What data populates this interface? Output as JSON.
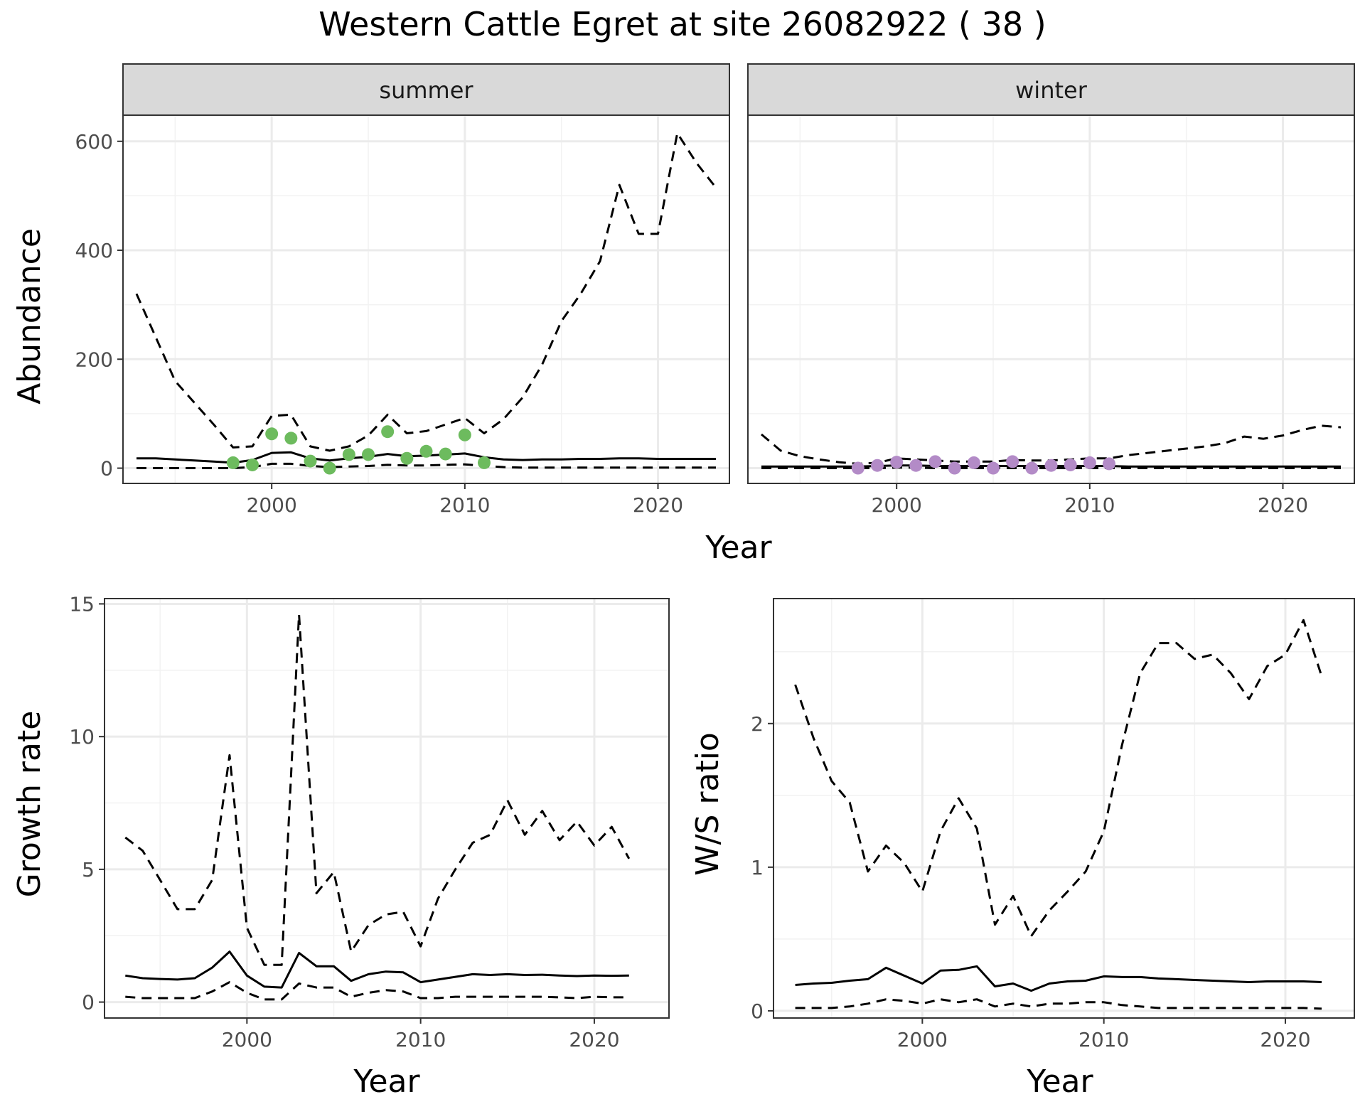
{
  "title": "Western Cattle Egret at site 26082922 ( 38 )",
  "chart_data": [
    {
      "id": "abundance-summer",
      "type": "line",
      "facet": "summer",
      "ylabel": "Abundance",
      "xlim": [
        1992.3,
        2023.7
      ],
      "ylim": [
        -28,
        648
      ],
      "xticks": [
        2000,
        2010,
        2020
      ],
      "yticks": [
        0,
        200,
        400,
        600
      ],
      "point_color": "#6dbb5e",
      "series": [
        {
          "style": "solid",
          "x": [
            1993,
            1994,
            1995,
            1996,
            1997,
            1998,
            1999,
            2000,
            2001,
            2002,
            2003,
            2004,
            2005,
            2006,
            2007,
            2008,
            2009,
            2010,
            2011,
            2012,
            2013,
            2014,
            2015,
            2016,
            2017,
            2018,
            2019,
            2020,
            2021,
            2022,
            2023
          ],
          "y": [
            18,
            18,
            16,
            14,
            12,
            10,
            15,
            28,
            29,
            18,
            14,
            18,
            21,
            26,
            22,
            23,
            25,
            27,
            20,
            16,
            15,
            16,
            16,
            17,
            17,
            18,
            18,
            17,
            17,
            17,
            17
          ]
        },
        {
          "style": "dashed",
          "x": [
            1993,
            1994,
            1995,
            1996,
            1997,
            1998,
            1999,
            2000,
            2001,
            2002,
            2003,
            2004,
            2005,
            2006,
            2007,
            2008,
            2009,
            2010,
            2011,
            2012,
            2013,
            2014,
            2015,
            2016,
            2017,
            2018,
            2019,
            2020,
            2021,
            2022,
            2023
          ],
          "y": [
            320,
            240,
            160,
            120,
            80,
            38,
            40,
            96,
            98,
            40,
            32,
            40,
            60,
            98,
            64,
            68,
            80,
            92,
            64,
            90,
            130,
            190,
            270,
            320,
            380,
            520,
            430,
            430,
            615,
            560,
            515
          ]
        },
        {
          "style": "dashed",
          "x": [
            1993,
            1994,
            1995,
            1996,
            1997,
            1998,
            1999,
            2000,
            2001,
            2002,
            2003,
            2004,
            2005,
            2006,
            2007,
            2008,
            2009,
            2010,
            2011,
            2012,
            2013,
            2014,
            2015,
            2016,
            2017,
            2018,
            2019,
            2020,
            2021,
            2022,
            2023
          ],
          "y": [
            0,
            0,
            0,
            0,
            0,
            0,
            2,
            8,
            8,
            4,
            2,
            3,
            4,
            6,
            5,
            5,
            6,
            7,
            4,
            2,
            1,
            1,
            1,
            1,
            1,
            1,
            1,
            1,
            1,
            1,
            1
          ]
        }
      ],
      "points": {
        "x": [
          1998,
          1999,
          2000,
          2001,
          2002,
          2003,
          2004,
          2005,
          2006,
          2007,
          2008,
          2009,
          2010,
          2011
        ],
        "y": [
          10,
          6,
          63,
          55,
          13,
          0,
          25,
          25,
          67,
          18,
          31,
          26,
          61,
          10
        ]
      }
    },
    {
      "id": "abundance-winter",
      "type": "line",
      "facet": "winter",
      "xlim": [
        1992.3,
        2023.7
      ],
      "ylim": [
        -28,
        648
      ],
      "xticks": [
        2000,
        2010,
        2020
      ],
      "yticks": [],
      "point_color": "#b38bc7",
      "series": [
        {
          "style": "solid",
          "x": [
            1993,
            1994,
            1995,
            1996,
            1997,
            1998,
            1999,
            2000,
            2001,
            2002,
            2003,
            2004,
            2005,
            2006,
            2007,
            2008,
            2009,
            2010,
            2011,
            2012,
            2013,
            2014,
            2015,
            2016,
            2017,
            2018,
            2019,
            2020,
            2021,
            2022,
            2023
          ],
          "y": [
            3,
            3,
            3,
            3,
            3,
            3,
            4,
            5,
            5,
            4,
            4,
            4,
            4,
            4,
            4,
            4,
            4,
            4,
            4,
            3,
            3,
            3,
            3,
            3,
            3,
            3,
            3,
            3,
            3,
            3,
            3
          ]
        },
        {
          "style": "dashed",
          "x": [
            1993,
            1994,
            1995,
            1996,
            1997,
            1998,
            1999,
            2000,
            2001,
            2002,
            2003,
            2004,
            2005,
            2006,
            2007,
            2008,
            2009,
            2010,
            2011,
            2012,
            2013,
            2014,
            2015,
            2016,
            2017,
            2018,
            2019,
            2020,
            2021,
            2022,
            2023
          ],
          "y": [
            62,
            32,
            22,
            16,
            11,
            8,
            10,
            18,
            16,
            14,
            12,
            12,
            12,
            15,
            14,
            14,
            16,
            18,
            18,
            24,
            28,
            32,
            36,
            40,
            46,
            58,
            54,
            60,
            70,
            78,
            75
          ]
        },
        {
          "style": "dashed",
          "x": [
            1993,
            1994,
            1995,
            1996,
            1997,
            1998,
            1999,
            2000,
            2001,
            2002,
            2003,
            2004,
            2005,
            2006,
            2007,
            2008,
            2009,
            2010,
            2011,
            2012,
            2013,
            2014,
            2015,
            2016,
            2017,
            2018,
            2019,
            2020,
            2021,
            2022,
            2023
          ],
          "y": [
            0,
            0,
            0,
            0,
            0,
            0,
            0,
            1,
            1,
            0,
            0,
            0,
            0,
            0,
            0,
            0,
            0,
            0,
            0,
            0,
            0,
            0,
            0,
            0,
            0,
            0,
            0,
            0,
            0,
            0,
            0
          ]
        }
      ],
      "points": {
        "x": [
          1998,
          1999,
          2000,
          2001,
          2002,
          2003,
          2004,
          2005,
          2006,
          2007,
          2008,
          2009,
          2010,
          2011
        ],
        "y": [
          0,
          5,
          11,
          5,
          12,
          0,
          10,
          0,
          12,
          0,
          5,
          6,
          10,
          8
        ]
      }
    },
    {
      "id": "growth-rate",
      "type": "line",
      "xlabel": "Year",
      "ylabel": "Growth rate",
      "xlim": [
        1991.8,
        2024.3
      ],
      "ylim": [
        -0.6,
        15.2
      ],
      "xticks": [
        2000,
        2010,
        2020
      ],
      "yticks": [
        0,
        5,
        10,
        15
      ],
      "series": [
        {
          "style": "solid",
          "x": [
            1993,
            1994,
            1995,
            1996,
            1997,
            1998,
            1999,
            2000,
            2001,
            2002,
            2003,
            2004,
            2005,
            2006,
            2007,
            2008,
            2009,
            2010,
            2011,
            2012,
            2013,
            2014,
            2015,
            2016,
            2017,
            2018,
            2019,
            2020,
            2021,
            2022
          ],
          "y": [
            1.0,
            0.9,
            0.87,
            0.85,
            0.9,
            1.3,
            1.9,
            1.0,
            0.58,
            0.55,
            1.85,
            1.35,
            1.35,
            0.8,
            1.05,
            1.15,
            1.12,
            0.75,
            0.85,
            0.95,
            1.05,
            1.02,
            1.05,
            1.02,
            1.03,
            1.0,
            0.98,
            1.0,
            0.99,
            1.0
          ]
        },
        {
          "style": "dashed",
          "x": [
            1993,
            1994,
            1995,
            1996,
            1997,
            1998,
            1999,
            2000,
            2001,
            2002,
            2003,
            2004,
            2005,
            2006,
            2007,
            2008,
            2009,
            2010,
            2011,
            2012,
            2013,
            2014,
            2015,
            2016,
            2017,
            2018,
            2019,
            2020,
            2021,
            2022
          ],
          "y": [
            6.2,
            5.7,
            4.6,
            3.5,
            3.5,
            4.6,
            9.3,
            2.8,
            1.4,
            1.4,
            14.6,
            4.1,
            4.9,
            1.9,
            2.9,
            3.3,
            3.4,
            2.1,
            3.9,
            5.0,
            6.0,
            6.3,
            7.6,
            6.3,
            7.2,
            6.1,
            6.8,
            5.9,
            6.6,
            5.4
          ]
        },
        {
          "style": "dashed",
          "x": [
            1993,
            1994,
            1995,
            1996,
            1997,
            1998,
            1999,
            2000,
            2001,
            2002,
            2003,
            2004,
            2005,
            2006,
            2007,
            2008,
            2009,
            2010,
            2011,
            2012,
            2013,
            2014,
            2015,
            2016,
            2017,
            2018,
            2019,
            2020,
            2021,
            2022
          ],
          "y": [
            0.2,
            0.15,
            0.15,
            0.15,
            0.15,
            0.4,
            0.75,
            0.35,
            0.1,
            0.1,
            0.7,
            0.55,
            0.55,
            0.2,
            0.35,
            0.45,
            0.4,
            0.15,
            0.15,
            0.2,
            0.2,
            0.2,
            0.2,
            0.2,
            0.2,
            0.18,
            0.15,
            0.2,
            0.18,
            0.18
          ]
        }
      ]
    },
    {
      "id": "ws-ratio",
      "type": "line",
      "xlabel": "Year",
      "ylabel": "W/S ratio",
      "xlim": [
        1991.8,
        2023.8
      ],
      "ylim": [
        -0.05,
        2.87
      ],
      "xticks": [
        2000,
        2010,
        2020
      ],
      "yticks": [
        0,
        1,
        2
      ],
      "series": [
        {
          "style": "solid",
          "x": [
            1993,
            1994,
            1995,
            1996,
            1997,
            1998,
            1999,
            2000,
            2001,
            2002,
            2003,
            2004,
            2005,
            2006,
            2007,
            2008,
            2009,
            2010,
            2011,
            2012,
            2013,
            2014,
            2015,
            2016,
            2017,
            2018,
            2019,
            2020,
            2021,
            2022
          ],
          "y": [
            0.18,
            0.19,
            0.195,
            0.21,
            0.22,
            0.3,
            0.245,
            0.19,
            0.28,
            0.285,
            0.31,
            0.17,
            0.19,
            0.14,
            0.19,
            0.205,
            0.21,
            0.24,
            0.235,
            0.235,
            0.225,
            0.22,
            0.215,
            0.21,
            0.205,
            0.2,
            0.205,
            0.205,
            0.205,
            0.2
          ]
        },
        {
          "style": "dashed",
          "x": [
            1993,
            1994,
            1995,
            1996,
            1997,
            1998,
            1999,
            2000,
            2001,
            2002,
            2003,
            2004,
            2005,
            2006,
            2007,
            2008,
            2009,
            2010,
            2011,
            2012,
            2013,
            2014,
            2015,
            2016,
            2017,
            2018,
            2019,
            2020,
            2021,
            2022
          ],
          "y": [
            2.27,
            1.9,
            1.6,
            1.45,
            0.97,
            1.15,
            1.03,
            0.83,
            1.25,
            1.48,
            1.27,
            0.6,
            0.8,
            0.52,
            0.7,
            0.83,
            0.97,
            1.25,
            1.85,
            2.35,
            2.56,
            2.56,
            2.45,
            2.48,
            2.35,
            2.17,
            2.4,
            2.48,
            2.72,
            2.33
          ]
        },
        {
          "style": "dashed",
          "x": [
            1993,
            1994,
            1995,
            1996,
            1997,
            1998,
            1999,
            2000,
            2001,
            2002,
            2003,
            2004,
            2005,
            2006,
            2007,
            2008,
            2009,
            2010,
            2011,
            2012,
            2013,
            2014,
            2015,
            2016,
            2017,
            2018,
            2019,
            2020,
            2021,
            2022
          ],
          "y": [
            0.02,
            0.02,
            0.02,
            0.03,
            0.05,
            0.08,
            0.07,
            0.05,
            0.08,
            0.06,
            0.08,
            0.03,
            0.05,
            0.03,
            0.05,
            0.05,
            0.06,
            0.06,
            0.04,
            0.03,
            0.02,
            0.02,
            0.02,
            0.02,
            0.02,
            0.02,
            0.02,
            0.02,
            0.02,
            0.015
          ]
        }
      ]
    }
  ],
  "top_xlabel": "Year"
}
